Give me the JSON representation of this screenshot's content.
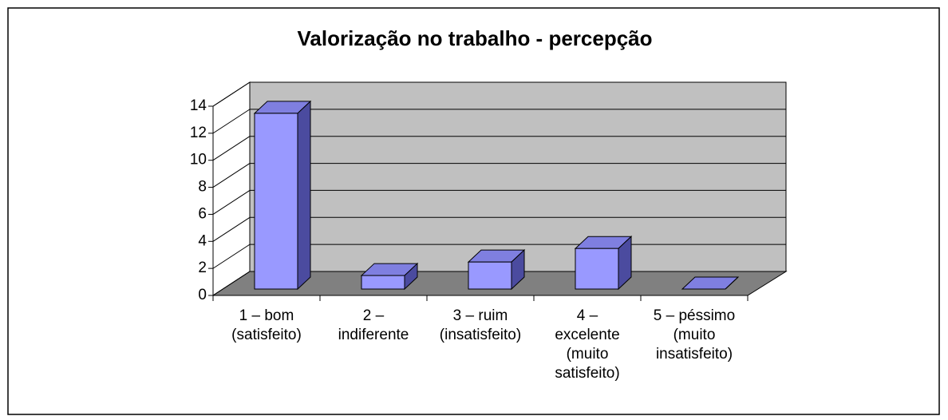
{
  "chart_data": {
    "type": "bar3d",
    "title": "Valorização no trabalho - percepção",
    "categories": [
      [
        "1 – bom",
        "(satisfeito)"
      ],
      [
        "2 –",
        "indiferente"
      ],
      [
        "3 – ruim",
        "(insatisfeito)"
      ],
      [
        "4 –",
        "excelente",
        "(muito",
        "satisfeito)"
      ],
      [
        "5 – péssimo",
        "(muito",
        "insatisfeito)"
      ]
    ],
    "values": [
      13,
      1,
      2,
      3,
      0
    ],
    "color": "#9999ff",
    "ylim": [
      0,
      14
    ],
    "yticks": [
      0,
      2,
      4,
      6,
      8,
      10,
      12,
      14
    ],
    "grid": true
  }
}
